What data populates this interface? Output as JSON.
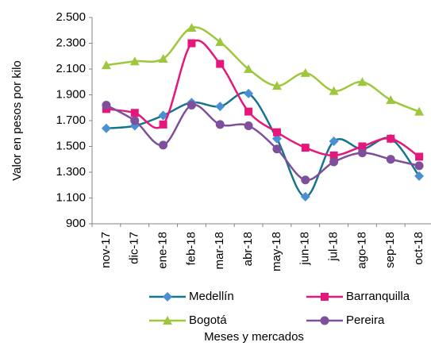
{
  "chart_data": {
    "type": "line",
    "y_label": "Valor en pesos por kilo",
    "x_label": "Meses  y mercados",
    "categories": [
      "nov-17",
      "dic-17",
      "ene-18",
      "feb-18",
      "mar-18",
      "abr-18",
      "may-18",
      "jun-18",
      "jul-18",
      "ago-18",
      "sep-18",
      "oct-18"
    ],
    "series": [
      {
        "name": "Medellín",
        "color": "#17748f",
        "marker_color": "#4a8fd4",
        "marker": "diamond",
        "values": [
          1640,
          1660,
          1740,
          1840,
          1810,
          1910,
          1560,
          1110,
          1540,
          1480,
          1560,
          1270
        ]
      },
      {
        "name": "Barranquilla",
        "color": "#e6177a",
        "marker_color": "#e6177a",
        "marker": "square",
        "values": [
          1790,
          1760,
          1670,
          2300,
          2140,
          1770,
          1610,
          1490,
          1430,
          1500,
          1560,
          1420
        ]
      },
      {
        "name": "Bogotá",
        "color": "#9ec73d",
        "marker_color": "#9ec73d",
        "marker": "triangle",
        "values": [
          2130,
          2160,
          2180,
          2420,
          2310,
          2100,
          1970,
          2070,
          1930,
          2000,
          1860,
          1770
        ]
      },
      {
        "name": "Pereira",
        "color": "#7e4f9b",
        "marker_color": "#7e4f9b",
        "marker": "circle",
        "values": [
          1820,
          1700,
          1510,
          1820,
          1670,
          1660,
          1480,
          1240,
          1380,
          1450,
          1400,
          1350
        ]
      }
    ],
    "ylim": [
      900,
      2500
    ],
    "yticks": [
      900,
      {
        "value": 1100,
        "label": "1.100"
      },
      {
        "value": 1300,
        "label": "1.300"
      },
      {
        "value": 1500,
        "label": "1.500"
      },
      {
        "value": 1700,
        "label": "1.700"
      },
      {
        "value": 1900,
        "label": "1.900"
      },
      {
        "value": 2100,
        "label": "2.100"
      },
      {
        "value": 2300,
        "label": "2.300"
      },
      {
        "value": 2500,
        "label": "2.500"
      }
    ],
    "smooth": true
  }
}
